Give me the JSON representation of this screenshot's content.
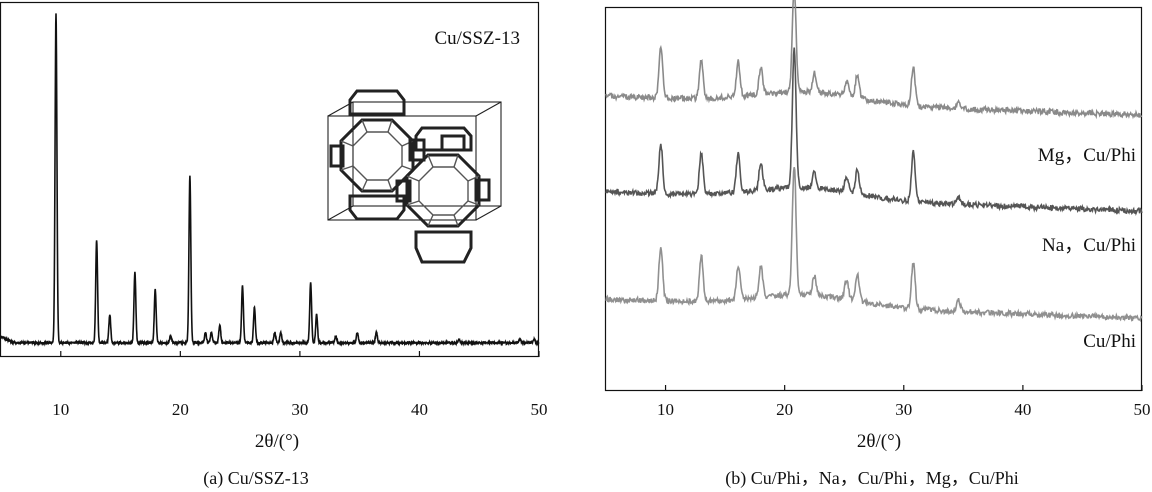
{
  "chart_data": [
    {
      "type": "line",
      "annotation": "Cu/SSZ-13",
      "xlabel": "2θ/(°)",
      "caption": "(a) Cu/SSZ-13",
      "xlim": [
        5,
        50
      ],
      "xticks": [
        10,
        20,
        30,
        40,
        50
      ],
      "baseline": 0.04,
      "grid": false,
      "inset": "zeolite-framework-cage",
      "series": [
        {
          "peaks": [
            {
              "x": 9.6,
              "h": 0.93
            },
            {
              "x": 13.0,
              "h": 0.29
            },
            {
              "x": 14.1,
              "h": 0.08
            },
            {
              "x": 16.2,
              "h": 0.2
            },
            {
              "x": 17.9,
              "h": 0.15
            },
            {
              "x": 19.2,
              "h": 0.02
            },
            {
              "x": 20.8,
              "h": 0.47
            },
            {
              "x": 22.1,
              "h": 0.03
            },
            {
              "x": 22.6,
              "h": 0.03
            },
            {
              "x": 23.3,
              "h": 0.05
            },
            {
              "x": 25.2,
              "h": 0.16
            },
            {
              "x": 26.2,
              "h": 0.1
            },
            {
              "x": 27.9,
              "h": 0.03
            },
            {
              "x": 28.4,
              "h": 0.03
            },
            {
              "x": 30.9,
              "h": 0.17
            },
            {
              "x": 31.4,
              "h": 0.08
            },
            {
              "x": 33.0,
              "h": 0.02
            },
            {
              "x": 34.8,
              "h": 0.03
            },
            {
              "x": 36.4,
              "h": 0.03
            },
            {
              "x": 43.3,
              "h": 0.01
            },
            {
              "x": 48.4,
              "h": 0.01
            },
            {
              "x": 49.6,
              "h": 0.01
            }
          ]
        }
      ]
    },
    {
      "type": "line",
      "xlabel": "2θ/(°)",
      "caption": "(b) Cu/Phi，Na，Cu/Phi，Mg，Cu/Phi",
      "xlim": [
        5,
        50
      ],
      "xticks": [
        10,
        20,
        30,
        40,
        50
      ],
      "grid": false,
      "series": [
        {
          "name": "Mg，Cu/Phi",
          "color": "#8a8a8a",
          "baseline": 0.72,
          "slope": 0.05,
          "peaks": [
            {
              "x": 9.6,
              "h": 0.13
            },
            {
              "x": 13.0,
              "h": 0.1
            },
            {
              "x": 16.1,
              "h": 0.09
            },
            {
              "x": 18.0,
              "h": 0.07
            },
            {
              "x": 20.8,
              "h": 0.27
            },
            {
              "x": 22.5,
              "h": 0.05
            },
            {
              "x": 25.2,
              "h": 0.04
            },
            {
              "x": 26.1,
              "h": 0.06
            },
            {
              "x": 30.8,
              "h": 0.1
            },
            {
              "x": 34.6,
              "h": 0.02
            }
          ]
        },
        {
          "name": "Na，Cu/Phi",
          "color": "#555555",
          "baseline": 0.47,
          "slope": 0.05,
          "peaks": [
            {
              "x": 9.6,
              "h": 0.13
            },
            {
              "x": 13.0,
              "h": 0.11
            },
            {
              "x": 16.1,
              "h": 0.1
            },
            {
              "x": 18.0,
              "h": 0.07
            },
            {
              "x": 20.8,
              "h": 0.36
            },
            {
              "x": 22.5,
              "h": 0.04
            },
            {
              "x": 25.2,
              "h": 0.04
            },
            {
              "x": 26.1,
              "h": 0.06
            },
            {
              "x": 30.8,
              "h": 0.13
            },
            {
              "x": 34.6,
              "h": 0.02
            }
          ]
        },
        {
          "name": "Cu/Phi",
          "color": "#909090",
          "baseline": 0.19,
          "slope": 0.05,
          "peaks": [
            {
              "x": 9.6,
              "h": 0.14
            },
            {
              "x": 13.0,
              "h": 0.12
            },
            {
              "x": 16.1,
              "h": 0.09
            },
            {
              "x": 18.0,
              "h": 0.08
            },
            {
              "x": 20.8,
              "h": 0.34
            },
            {
              "x": 22.5,
              "h": 0.05
            },
            {
              "x": 25.2,
              "h": 0.05
            },
            {
              "x": 26.1,
              "h": 0.07
            },
            {
              "x": 30.8,
              "h": 0.12
            },
            {
              "x": 34.6,
              "h": 0.03
            }
          ]
        }
      ]
    }
  ]
}
